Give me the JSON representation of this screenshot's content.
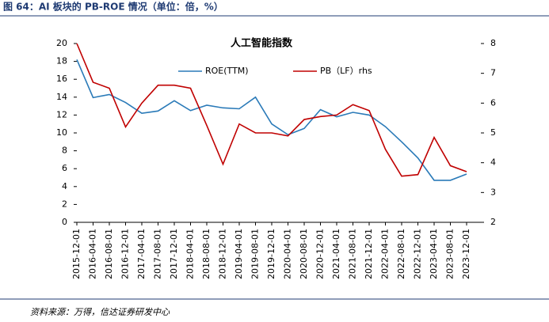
{
  "caption": "图 64：AI 板块的 PB-ROE 情况（单位：倍，%）",
  "source": "资料来源：万得，信达证券研发中心",
  "chart_data": {
    "type": "line",
    "title": "人工智能指数",
    "categories": [
      "2015-12-01",
      "2016-04-01",
      "2016-08-01",
      "2016-12-01",
      "2017-04-01",
      "2017-08-01",
      "2017-12-01",
      "2018-04-01",
      "2018-08-01",
      "2018-12-01",
      "2019-04-01",
      "2019-08-01",
      "2019-12-01",
      "2020-04-01",
      "2020-08-01",
      "2020-12-01",
      "2021-04-01",
      "2021-08-01",
      "2021-12-01",
      "2022-04-01",
      "2022-08-01",
      "2022-12-01",
      "2023-04-01",
      "2023-08-01",
      "2023-12-01"
    ],
    "series": [
      {
        "name": "ROE(TTM)",
        "color": "#2a7ab8",
        "values": [
          18.2,
          13.95,
          14.3,
          13.4,
          12.2,
          12.45,
          13.6,
          12.5,
          13.1,
          12.8,
          12.7,
          14.0,
          11.0,
          9.8,
          10.5,
          12.6,
          11.8,
          12.3,
          12.0,
          10.7,
          9.0,
          7.2,
          4.7,
          4.7,
          5.4
        ]
      },
      {
        "name": "PB（LF）rhs",
        "color": "#c00000",
        "axis": "y2",
        "values": [
          8.0,
          6.7,
          6.5,
          5.2,
          6.0,
          6.6,
          6.6,
          6.5,
          5.25,
          3.95,
          5.3,
          5.0,
          5.0,
          4.9,
          5.45,
          5.55,
          5.6,
          5.95,
          5.75,
          4.45,
          3.55,
          3.6,
          4.85,
          3.9,
          3.7
        ]
      }
    ],
    "ylim": [
      0,
      20
    ],
    "yticks": [
      0,
      2,
      4,
      6,
      8,
      10,
      12,
      14,
      16,
      18,
      20
    ],
    "y2lim": [
      2,
      8
    ],
    "y2ticks": [
      2,
      3,
      4,
      5,
      6,
      7,
      8
    ]
  }
}
